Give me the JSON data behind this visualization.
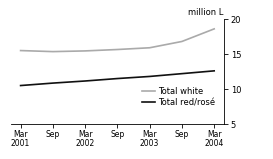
{
  "title": "",
  "ylabel": "million L",
  "ylim": [
    5,
    20
  ],
  "yticks": [
    5,
    10,
    15,
    20
  ],
  "x_labels": [
    "Mar\n2001",
    "Sep",
    "Mar\n2002",
    "Sep",
    "Mar\n2003",
    "Sep",
    "Mar\n2004"
  ],
  "x_positions": [
    0,
    1,
    2,
    3,
    4,
    5,
    6
  ],
  "white_values": [
    15.5,
    15.35,
    15.45,
    15.65,
    15.9,
    16.8,
    18.6
  ],
  "red_values": [
    10.5,
    10.85,
    11.15,
    11.5,
    11.8,
    12.2,
    12.6
  ],
  "white_color": "#aaaaaa",
  "red_color": "#111111",
  "white_label": "Total white",
  "red_label": "Total red/rosé",
  "legend_fontsize": 6.0,
  "background_color": "#ffffff",
  "line_width": 1.2
}
